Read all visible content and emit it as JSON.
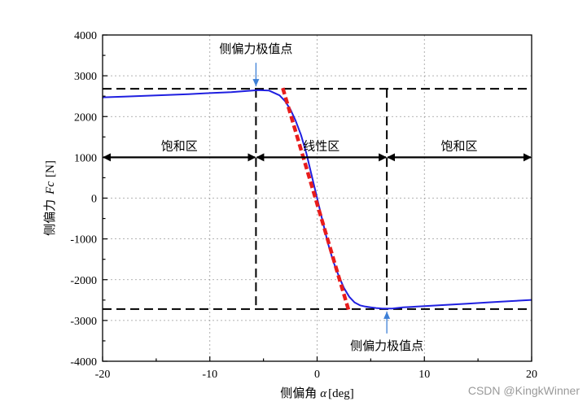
{
  "chart_data": {
    "type": "line",
    "xlabel": {
      "prefix": "侧偏角",
      "symbol": "α",
      "unit": "[deg]"
    },
    "ylabel": {
      "prefix": "侧偏力",
      "symbol": "Fc",
      "unit": "[N]"
    },
    "xlim": [
      -20,
      20
    ],
    "ylim": [
      -4000,
      4000
    ],
    "x_ticks": [
      -20,
      -10,
      0,
      10,
      20
    ],
    "y_ticks": [
      -4000,
      -3000,
      -2000,
      -1000,
      0,
      1000,
      2000,
      3000,
      4000
    ],
    "grid": true,
    "colors": {
      "curve": "#1f1fe0",
      "linear": "#e81c1c",
      "guide": "#000000",
      "arrow": "#3d7fd6"
    },
    "series": [
      {
        "style": "solid",
        "x": [
          -20,
          -18,
          -16,
          -14,
          -12,
          -10,
          -8,
          -6.5,
          -5.5,
          -4.5,
          -3.5,
          -3,
          -2.5,
          -2,
          -1.5,
          -1,
          -0.5,
          0,
          0.5,
          1,
          1.5,
          2,
          2.5,
          3,
          3.5,
          4,
          4.5,
          5,
          5.5,
          6,
          6.5,
          7,
          8,
          10,
          12,
          14,
          16,
          18,
          20
        ],
        "y": [
          2470,
          2490,
          2510,
          2530,
          2550,
          2575,
          2600,
          2630,
          2650,
          2640,
          2520,
          2380,
          2180,
          1900,
          1550,
          1100,
          550,
          0,
          -550,
          -1100,
          -1550,
          -1900,
          -2200,
          -2420,
          -2560,
          -2630,
          -2660,
          -2680,
          -2695,
          -2705,
          -2710,
          -2708,
          -2680,
          -2650,
          -2620,
          -2590,
          -2555,
          -2525,
          -2495
        ]
      },
      {
        "style": "dotted",
        "x": [
          -3.2,
          3
        ],
        "y": [
          2700,
          -2800
        ]
      }
    ],
    "guides": {
      "y_peak": 2680,
      "y_trough": -2720,
      "x_left": -5.7,
      "x_right": 6.5
    },
    "regions": [
      {
        "label": "饱和区",
        "from": -20,
        "to": -5.7
      },
      {
        "label": "线性区",
        "from": -5.7,
        "to": 6.5
      },
      {
        "label": "饱和区",
        "from": 6.5,
        "to": 20
      }
    ],
    "region_arrow_y": 1000,
    "annotations": [
      {
        "text": "侧偏力极值点",
        "x": -5.7,
        "y": 2680,
        "position": "above"
      },
      {
        "text": "侧偏力极值点",
        "x": 6.5,
        "y": -2720,
        "position": "below"
      }
    ]
  },
  "watermark": "CSDN @KingkWinner"
}
